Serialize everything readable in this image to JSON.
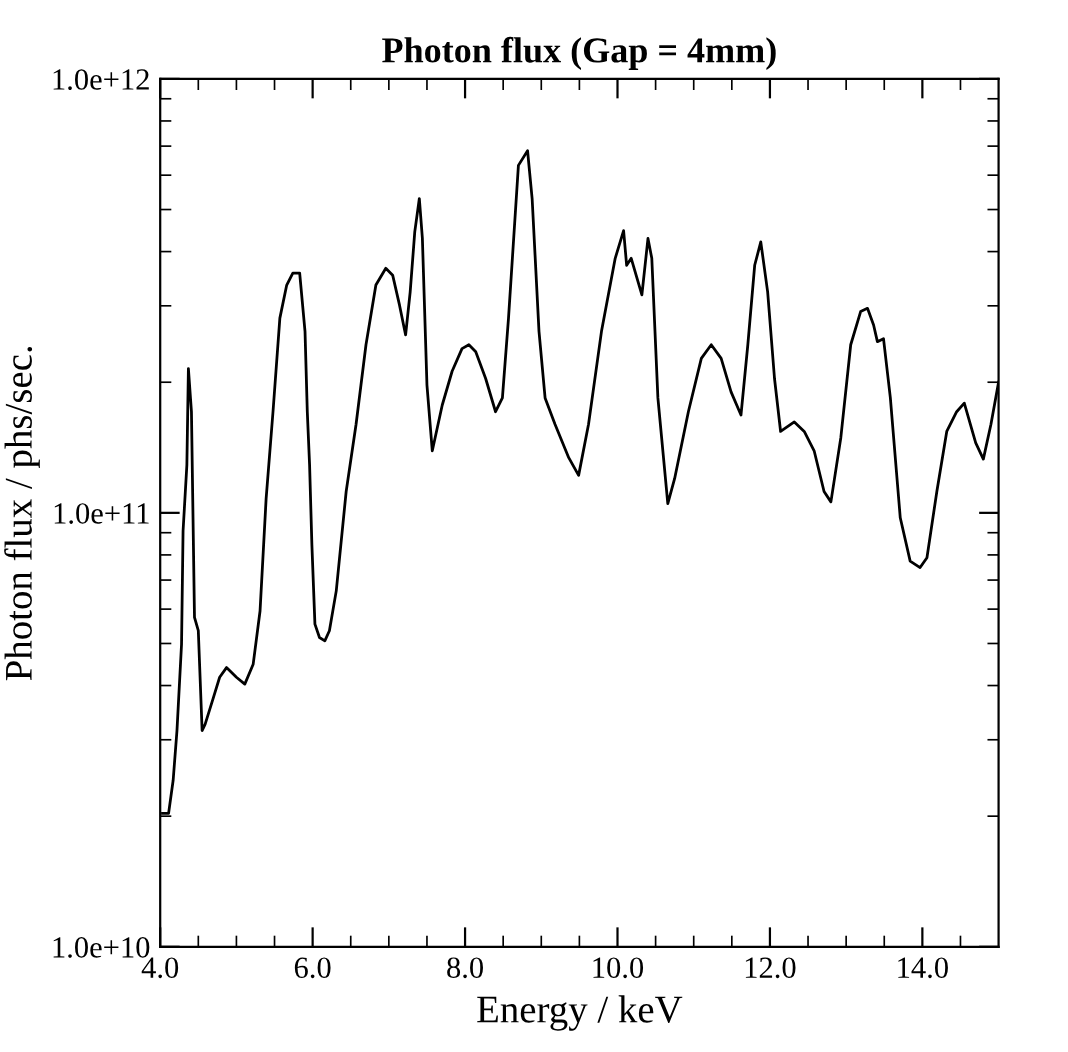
{
  "chart_data": {
    "type": "line",
    "title": "Photon flux (Gap = 4mm)",
    "xlabel": "Energy / keV",
    "ylabel": "Photon flux / phs/sec.",
    "log": "y",
    "xlim": [
      4.0,
      15.0
    ],
    "ylim": [
      10000000000.0,
      1000000000000.0
    ],
    "xticks": [
      {
        "value": 4.0,
        "label": "4.0"
      },
      {
        "value": 4.5,
        "label": null
      },
      {
        "value": 5.0,
        "label": null
      },
      {
        "value": 5.5,
        "label": null
      },
      {
        "value": 6.0,
        "label": "6.0"
      },
      {
        "value": 6.5,
        "label": null
      },
      {
        "value": 7.0,
        "label": null
      },
      {
        "value": 7.5,
        "label": null
      },
      {
        "value": 8.0,
        "label": "8.0"
      },
      {
        "value": 8.5,
        "label": null
      },
      {
        "value": 9.0,
        "label": null
      },
      {
        "value": 9.5,
        "label": null
      },
      {
        "value": 10.0,
        "label": "10.0"
      },
      {
        "value": 10.5,
        "label": null
      },
      {
        "value": 11.0,
        "label": null
      },
      {
        "value": 11.5,
        "label": null
      },
      {
        "value": 12.0,
        "label": "12.0"
      },
      {
        "value": 12.5,
        "label": null
      },
      {
        "value": 13.0,
        "label": null
      },
      {
        "value": 13.5,
        "label": null
      },
      {
        "value": 14.0,
        "label": "14.0"
      },
      {
        "value": 14.5,
        "label": null
      }
    ],
    "yticks": [
      {
        "value": 10000000000.0,
        "label": "1.0e+10"
      },
      {
        "value": 20000000000.0,
        "label": null
      },
      {
        "value": 30000000000.0,
        "label": null
      },
      {
        "value": 40000000000.0,
        "label": null
      },
      {
        "value": 50000000000.0,
        "label": null
      },
      {
        "value": 60000000000.0,
        "label": null
      },
      {
        "value": 70000000000.0,
        "label": null
      },
      {
        "value": 80000000000.0,
        "label": null
      },
      {
        "value": 90000000000.0,
        "label": null
      },
      {
        "value": 100000000000.0,
        "label": "1.0e+11"
      },
      {
        "value": 200000000000.0,
        "label": null
      },
      {
        "value": 300000000000.0,
        "label": null
      },
      {
        "value": 400000000000.0,
        "label": null
      },
      {
        "value": 500000000000.0,
        "label": null
      },
      {
        "value": 600000000000.0,
        "label": null
      },
      {
        "value": 700000000000.0,
        "label": null
      },
      {
        "value": 800000000000.0,
        "label": null
      },
      {
        "value": 900000000000.0,
        "label": null
      },
      {
        "value": 1000000000000.0,
        "label": "1.0e+12"
      }
    ],
    "grid": false,
    "legend": false,
    "marker": "none",
    "line_style": "solid",
    "series": [
      {
        "color": "#000000",
        "x": [
          4.03,
          4.11,
          4.17,
          4.22,
          4.28,
          4.3,
          4.35,
          4.37,
          4.41,
          4.45,
          4.5,
          4.55,
          4.59,
          4.7,
          4.78,
          4.87,
          5.0,
          5.11,
          5.22,
          5.31,
          5.39,
          5.48,
          5.57,
          5.66,
          5.74,
          5.83,
          5.9,
          5.93,
          5.96,
          5.99,
          6.03,
          6.09,
          6.16,
          6.22,
          6.31,
          6.44,
          6.57,
          6.7,
          6.83,
          6.96,
          7.05,
          7.14,
          7.22,
          7.28,
          7.34,
          7.4,
          7.44,
          7.5,
          7.57,
          7.7,
          7.83,
          7.96,
          8.05,
          8.14,
          8.27,
          8.4,
          8.49,
          8.57,
          8.7,
          8.82,
          8.88,
          8.97,
          9.05,
          9.18,
          9.36,
          9.49,
          9.62,
          9.79,
          9.97,
          10.08,
          10.12,
          10.18,
          10.32,
          10.4,
          10.45,
          10.53,
          10.66,
          10.75,
          10.93,
          11.1,
          11.23,
          11.36,
          11.49,
          11.62,
          11.71,
          11.8,
          11.88,
          11.97,
          12.06,
          12.14,
          12.32,
          12.45,
          12.58,
          12.71,
          12.8,
          12.93,
          13.06,
          13.19,
          13.28,
          13.36,
          13.41,
          13.49,
          13.58,
          13.71,
          13.84,
          13.97,
          14.06,
          14.19,
          14.32,
          14.45,
          14.55,
          14.7,
          14.8,
          14.9,
          15.0
        ],
        "values": [
          20300000000.0,
          20300000000.0,
          24200000000.0,
          31500000000.0,
          49800000000.0,
          90800000000.0,
          129000000000.0,
          215000000000.0,
          171000000000.0,
          57400000000.0,
          53500000000.0,
          31500000000.0,
          32600000000.0,
          37600000000.0,
          41800000000.0,
          44000000000.0,
          41800000000.0,
          40300000000.0,
          44800000000.0,
          59400000000.0,
          108000000000.0,
          171000000000.0,
          281000000000.0,
          335000000000.0,
          357000000000.0,
          357000000000.0,
          262000000000.0,
          171000000000.0,
          129000000000.0,
          84600000000.0,
          55400000000.0,
          51600000000.0,
          50700000000.0,
          53500000000.0,
          66100000000.0,
          112000000000.0,
          160000000000.0,
          244000000000.0,
          335000000000.0,
          366000000000.0,
          353000000000.0,
          301000000000.0,
          257000000000.0,
          323000000000.0,
          444000000000.0,
          530000000000.0,
          429000000000.0,
          197000000000.0,
          139000000000.0,
          177000000000.0,
          212000000000.0,
          239000000000.0,
          244000000000.0,
          235000000000.0,
          204000000000.0,
          171000000000.0,
          184000000000.0,
          281000000000.0,
          632000000000.0,
          683000000000.0,
          530000000000.0,
          262000000000.0,
          184000000000.0,
          160000000000.0,
          134000000000.0,
          122000000000.0,
          160000000000.0,
          262000000000.0,
          386000000000.0,
          447000000000.0,
          372000000000.0,
          386000000000.0,
          318000000000.0,
          429000000000.0,
          386000000000.0,
          184000000000.0,
          105000000000.0,
          120000000000.0,
          171000000000.0,
          227000000000.0,
          244000000000.0,
          227000000000.0,
          190000000000.0,
          168000000000.0,
          244000000000.0,
          372000000000.0,
          421000000000.0,
          323000000000.0,
          204000000000.0,
          154000000000.0,
          162000000000.0,
          154000000000.0,
          139000000000.0,
          112000000000.0,
          106000000000.0,
          149000000000.0,
          244000000000.0,
          291000000000.0,
          296000000000.0,
          271000000000.0,
          248000000000.0,
          252000000000.0,
          184000000000.0,
          97400000000.0,
          77400000000.0,
          74800000000.0,
          78800000000.0,
          112000000000.0,
          154000000000.0,
          171000000000.0,
          179000000000.0,
          145000000000.0,
          133000000000.0,
          160000000000.0,
          200000000000.0
        ]
      }
    ]
  }
}
